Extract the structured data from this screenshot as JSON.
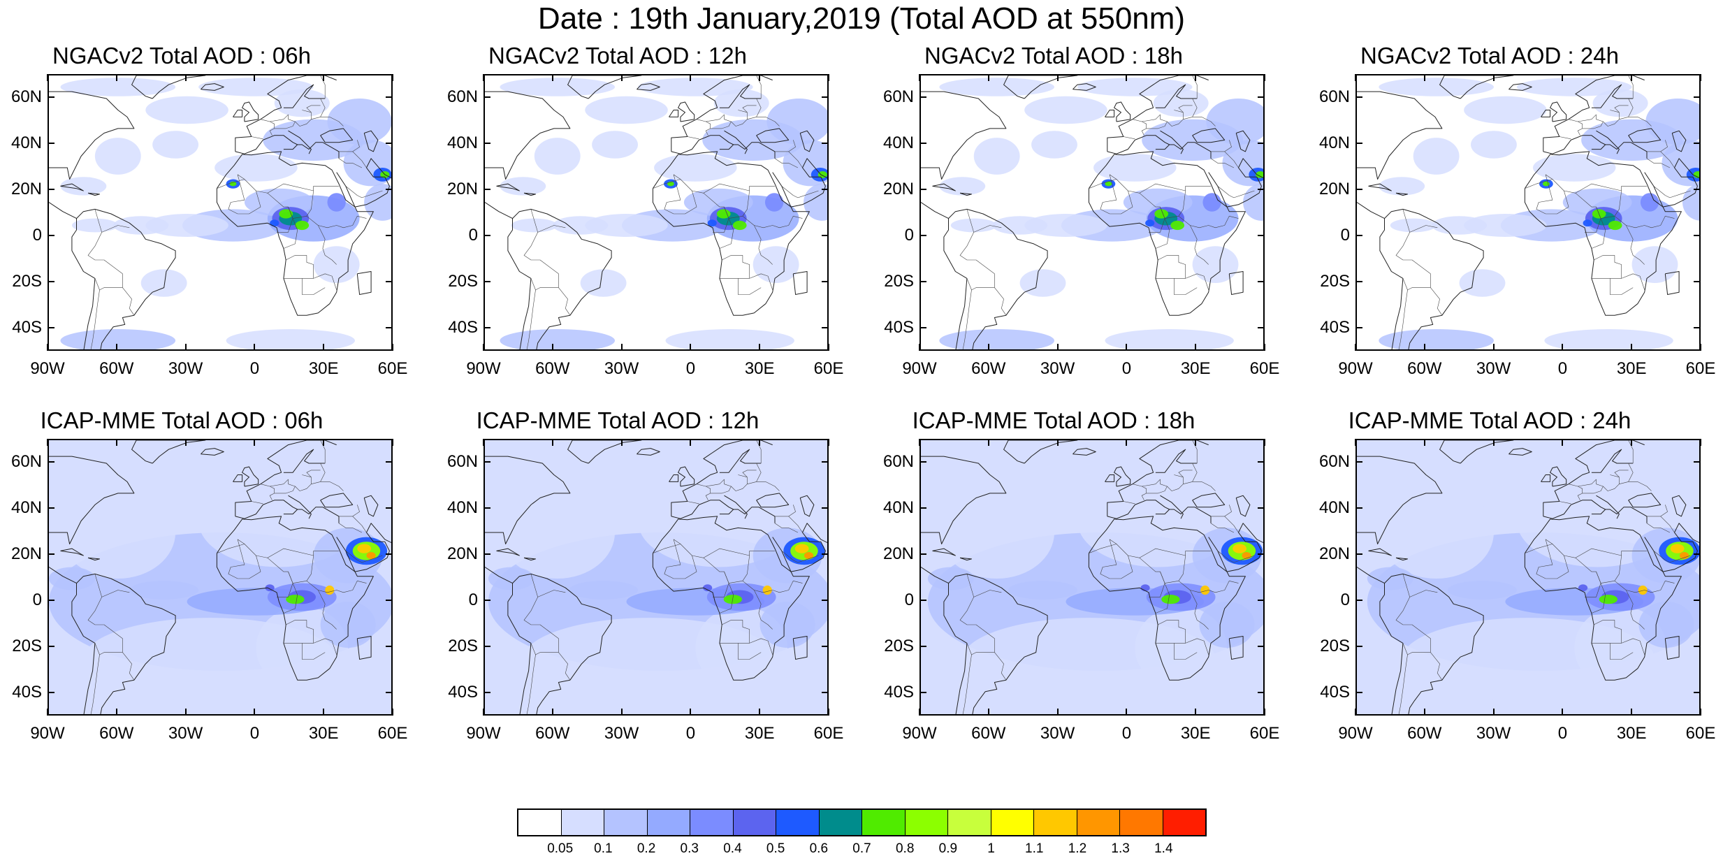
{
  "title": "Date : 19th January,2019 (Total AOD at 550nm)",
  "panels": [
    {
      "title": "NGACv2 Total AOD : 06h",
      "model": "ngac"
    },
    {
      "title": "NGACv2 Total AOD : 12h",
      "model": "ngac"
    },
    {
      "title": "NGACv2 Total AOD : 18h",
      "model": "ngac"
    },
    {
      "title": "NGACv2 Total AOD : 24h",
      "model": "ngac"
    },
    {
      "title": "ICAP-MME Total AOD : 06h",
      "model": "icap"
    },
    {
      "title": "ICAP-MME Total AOD : 12h",
      "model": "icap"
    },
    {
      "title": "ICAP-MME Total AOD : 18h",
      "model": "icap"
    },
    {
      "title": "ICAP-MME Total AOD : 24h",
      "model": "icap"
    }
  ],
  "lat_labels": [
    "60N",
    "40N",
    "20N",
    "0",
    "20S",
    "40S"
  ],
  "lat_values": [
    60,
    40,
    20,
    0,
    -20,
    -40
  ],
  "lon_labels": [
    "90W",
    "60W",
    "30W",
    "0",
    "30E",
    "60E"
  ],
  "lon_values": [
    -90,
    -60,
    -30,
    0,
    30,
    60
  ],
  "extent": {
    "lon": [
      -90,
      60
    ],
    "lat": [
      -50,
      70
    ]
  },
  "colorbar": {
    "labels": [
      "0.05",
      "0.1",
      "0.2",
      "0.3",
      "0.4",
      "0.5",
      "0.6",
      "0.7",
      "0.8",
      "0.9",
      "1",
      "1.1",
      "1.2",
      "1.3",
      "1.4"
    ],
    "colors": [
      "#ffffff",
      "#d6deff",
      "#b4c3ff",
      "#94aaff",
      "#7b8cff",
      "#5c64ef",
      "#1e5aff",
      "#008c8c",
      "#50eb00",
      "#8cff00",
      "#c8ff3c",
      "#ffff00",
      "#ffc800",
      "#ff9600",
      "#ff7800",
      "#ff1e00"
    ]
  }
}
